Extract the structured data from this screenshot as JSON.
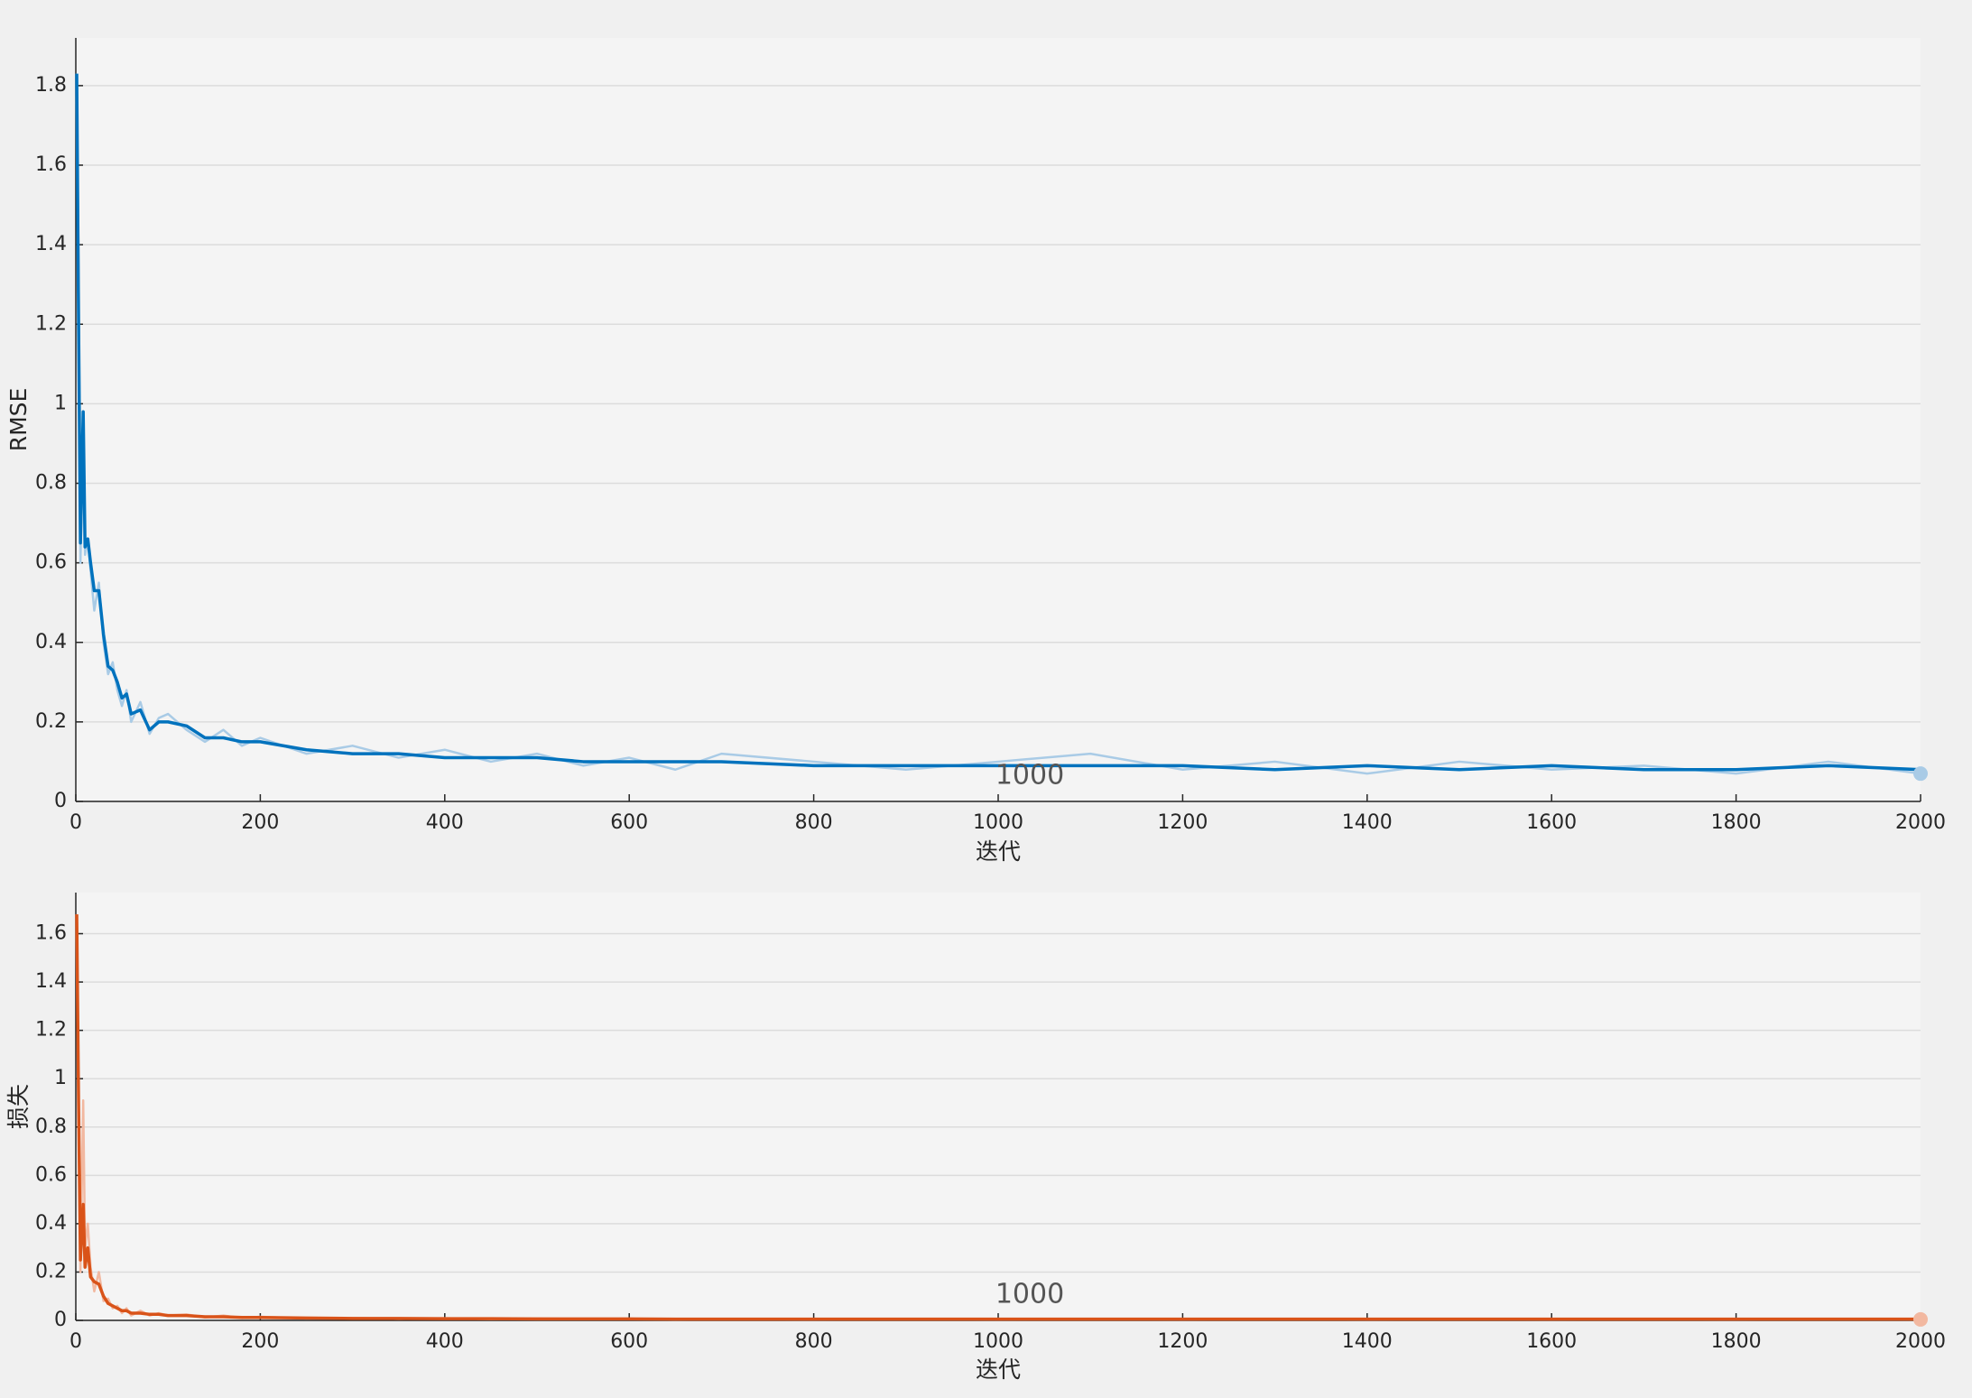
{
  "chart_data": [
    {
      "type": "line",
      "ylabel": "RMSE",
      "xlabel": "迭代",
      "annotation": "1000",
      "xlim": [
        0,
        2000
      ],
      "xticks": [
        0,
        200,
        400,
        600,
        800,
        1000,
        1200,
        1400,
        1600,
        1800,
        2000
      ],
      "ylim": [
        0,
        1.92
      ],
      "yticks": [
        0,
        0.2,
        0.4,
        0.6,
        0.8,
        1,
        1.2,
        1.4,
        1.6,
        1.8
      ],
      "grid": true,
      "x": [
        1,
        3,
        5,
        8,
        10,
        13,
        16,
        20,
        25,
        30,
        35,
        40,
        45,
        50,
        55,
        60,
        70,
        80,
        90,
        100,
        120,
        140,
        160,
        180,
        200,
        250,
        300,
        350,
        400,
        450,
        500,
        550,
        600,
        650,
        700,
        800,
        900,
        1000,
        1100,
        1200,
        1300,
        1400,
        1500,
        1600,
        1700,
        1800,
        1900,
        2000
      ],
      "series": [
        {
          "color": "#a9cbe6",
          "values": [
            1.83,
            1.35,
            0.6,
            0.91,
            0.62,
            0.66,
            0.58,
            0.48,
            0.55,
            0.4,
            0.32,
            0.35,
            0.28,
            0.24,
            0.28,
            0.2,
            0.25,
            0.17,
            0.21,
            0.22,
            0.18,
            0.15,
            0.18,
            0.14,
            0.16,
            0.12,
            0.14,
            0.11,
            0.13,
            0.1,
            0.12,
            0.09,
            0.11,
            0.08,
            0.12,
            0.1,
            0.08,
            0.1,
            0.12,
            0.08,
            0.1,
            0.07,
            0.1,
            0.08,
            0.09,
            0.07,
            0.1,
            0.07
          ]
        },
        {
          "color": "#0072bd",
          "values": [
            1.83,
            1.2,
            0.65,
            0.98,
            0.64,
            0.66,
            0.6,
            0.53,
            0.53,
            0.42,
            0.34,
            0.33,
            0.3,
            0.26,
            0.27,
            0.22,
            0.23,
            0.18,
            0.2,
            0.2,
            0.19,
            0.16,
            0.16,
            0.15,
            0.15,
            0.13,
            0.12,
            0.12,
            0.11,
            0.11,
            0.11,
            0.1,
            0.1,
            0.1,
            0.1,
            0.09,
            0.09,
            0.09,
            0.09,
            0.09,
            0.08,
            0.09,
            0.08,
            0.09,
            0.08,
            0.08,
            0.09,
            0.08
          ]
        }
      ]
    },
    {
      "type": "line",
      "ylabel": "损失",
      "xlabel": "迭代",
      "annotation": "1000",
      "xlim": [
        0,
        2000
      ],
      "xticks": [
        0,
        200,
        400,
        600,
        800,
        1000,
        1200,
        1400,
        1600,
        1800,
        2000
      ],
      "ylim": [
        0,
        1.77
      ],
      "yticks": [
        0,
        0.2,
        0.4,
        0.6,
        0.8,
        1,
        1.2,
        1.4,
        1.6
      ],
      "grid": true,
      "x": [
        1,
        3,
        5,
        8,
        10,
        13,
        16,
        20,
        25,
        30,
        35,
        40,
        45,
        50,
        55,
        60,
        70,
        80,
        90,
        100,
        120,
        140,
        160,
        180,
        200,
        250,
        300,
        350,
        400,
        450,
        500,
        550,
        600,
        650,
        700,
        800,
        900,
        1000,
        1100,
        1200,
        1300,
        1400,
        1500,
        1600,
        1700,
        1800,
        1900,
        2000
      ],
      "series": [
        {
          "color": "#f2b8a0",
          "values": [
            1.68,
            0.92,
            0.2,
            0.91,
            0.3,
            0.4,
            0.22,
            0.12,
            0.2,
            0.08,
            0.09,
            0.05,
            0.06,
            0.03,
            0.05,
            0.02,
            0.04,
            0.02,
            0.03,
            0.02,
            0.025,
            0.012,
            0.02,
            0.01,
            0.015,
            0.008,
            0.01,
            0.006,
            0.009,
            0.005,
            0.008,
            0.005,
            0.007,
            0.004,
            0.006,
            0.004,
            0.006,
            0.004,
            0.006,
            0.004,
            0.006,
            0.004,
            0.006,
            0.004,
            0.006,
            0.004,
            0.006,
            0.004
          ]
        },
        {
          "color": "#d95319",
          "values": [
            1.68,
            0.9,
            0.25,
            0.48,
            0.22,
            0.3,
            0.18,
            0.16,
            0.15,
            0.1,
            0.07,
            0.06,
            0.05,
            0.04,
            0.04,
            0.03,
            0.03,
            0.025,
            0.025,
            0.02,
            0.02,
            0.015,
            0.015,
            0.012,
            0.012,
            0.01,
            0.008,
            0.008,
            0.007,
            0.007,
            0.006,
            0.006,
            0.006,
            0.005,
            0.005,
            0.005,
            0.005,
            0.005,
            0.005,
            0.005,
            0.005,
            0.005,
            0.005,
            0.005,
            0.005,
            0.005,
            0.005,
            0.005
          ]
        }
      ]
    }
  ]
}
